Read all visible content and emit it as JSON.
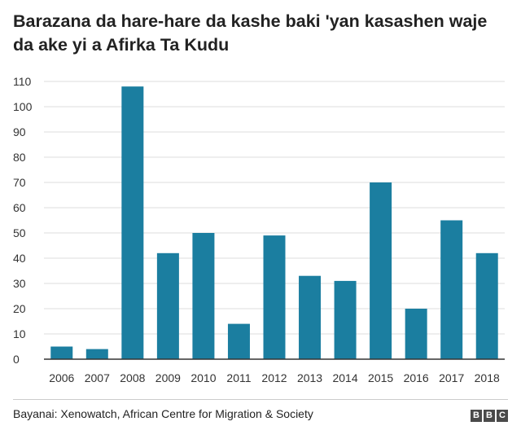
{
  "title": "Barazana da hare-hare da kashe baki 'yan kasashen waje da ake yi a Afirka Ta Kudu",
  "source": "Bayanai: Xenowatch, African Centre for Migration & Society",
  "logo": [
    "B",
    "B",
    "C"
  ],
  "colors": {
    "bar": "#1b7ea0",
    "grid": "#dddddd",
    "axis": "#333333"
  },
  "chart_data": {
    "type": "bar",
    "categories": [
      "2006",
      "2007",
      "2008",
      "2009",
      "2010",
      "2011",
      "2012",
      "2013",
      "2014",
      "2015",
      "2016",
      "2017",
      "2018"
    ],
    "values": [
      5,
      4,
      108,
      42,
      50,
      14,
      49,
      33,
      31,
      70,
      20,
      55,
      42
    ],
    "yticks": [
      0,
      10,
      20,
      30,
      40,
      50,
      60,
      70,
      80,
      90,
      100,
      110
    ],
    "ylim": [
      0,
      110
    ],
    "title": "Barazana da hare-hare da kashe baki 'yan kasashen waje da ake yi a Afirka Ta Kudu",
    "xlabel": "",
    "ylabel": "",
    "grid": true,
    "legend": "none"
  }
}
